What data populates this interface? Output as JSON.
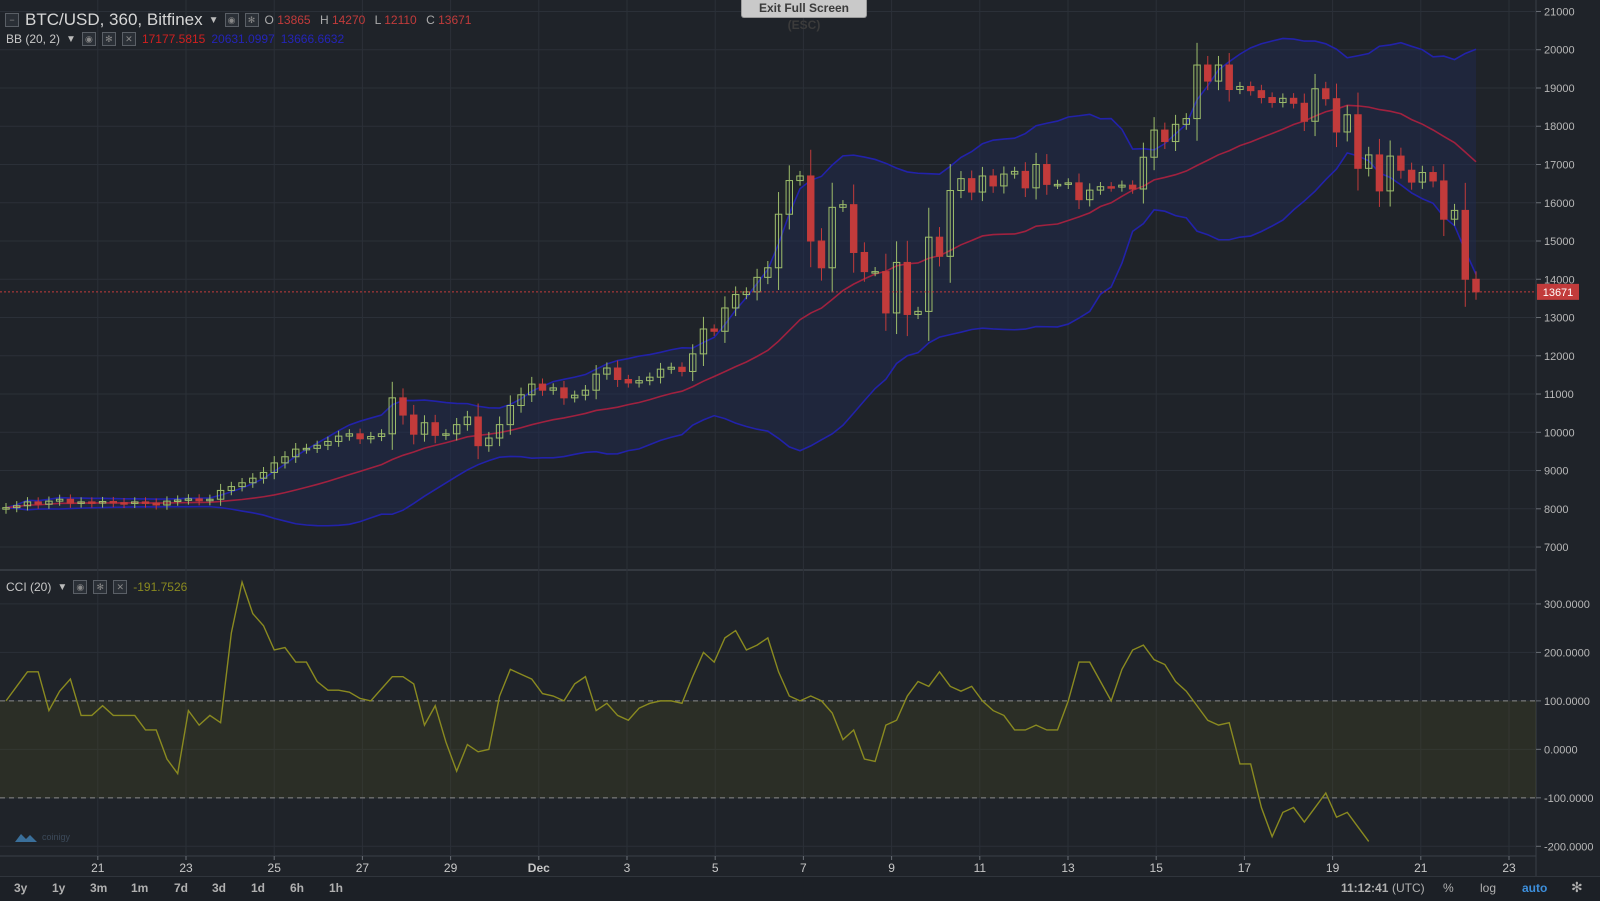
{
  "header": {
    "symbol": "BTC/USD, 360, Bitfinex",
    "ohlc": [
      {
        "label": "O",
        "value": "13865"
      },
      {
        "label": "H",
        "value": "14270"
      },
      {
        "label": "L",
        "value": "12110"
      },
      {
        "label": "C",
        "value": "13671"
      }
    ],
    "fullscreen_button": "Exit Full Screen (ESC)"
  },
  "bb_legend": {
    "name": "BB (20, 2)",
    "mid": "17177.5815",
    "upper": "20631.0997",
    "lower": "13666.6632"
  },
  "cci_legend": {
    "name": "CCI (20)",
    "value": "-191.7526"
  },
  "price_tag": "13671",
  "bottom": {
    "timeframes": [
      "3y",
      "1y",
      "3m",
      "1m",
      "7d",
      "3d",
      "1d",
      "6h",
      "1h"
    ],
    "time": "11:12:41",
    "tz": "(UTC)",
    "percent": "%",
    "log": "log",
    "auto": "auto"
  },
  "logo_text": "coinigy",
  "colors": {
    "up": "#9dbd6b",
    "down": "#c23b3b",
    "bb_band": "#2222aa",
    "bb_mid": "#a0213f",
    "cci": "#8a8a20",
    "background": "#1f2329"
  },
  "chart_data": [
    {
      "type": "candlestick",
      "title": "BTC/USD, 360, Bitfinex",
      "x_tick_labels": [
        "21",
        "23",
        "25",
        "27",
        "29",
        "Dec",
        "3",
        "5",
        "7",
        "9",
        "11",
        "13",
        "15",
        "17",
        "19",
        "21",
        "23"
      ],
      "y_ticks": [
        7000,
        8000,
        9000,
        10000,
        11000,
        12000,
        13000,
        14000,
        15000,
        16000,
        17000,
        18000,
        19000,
        20000,
        21000
      ],
      "ylim": [
        6400,
        21300
      ],
      "last_price": 13671,
      "series": [
        {
          "name": "BB (20, 2)",
          "close": [
            8030,
            8080,
            8180,
            8120,
            8200,
            8250,
            8150,
            8180,
            8150,
            8190,
            8160,
            8140,
            8180,
            8150,
            8100,
            8200,
            8230,
            8260,
            8210,
            8250,
            8480,
            8580,
            8680,
            8800,
            8950,
            9200,
            9360,
            9560,
            9580,
            9660,
            9760,
            9900,
            9960,
            9830,
            9890,
            9960,
            10900,
            10450,
            9950,
            10250,
            9920,
            9960,
            10200,
            10400,
            9650,
            9850,
            10200,
            10700,
            10980,
            11260,
            11100,
            11160,
            10900,
            10970,
            11100,
            11520,
            11680,
            11380,
            11290,
            11350,
            11440,
            11650,
            11700,
            11590,
            12050,
            12700,
            12640,
            13250,
            13600,
            13670,
            14050,
            14300,
            15700,
            16580,
            16700,
            15000,
            14300,
            15880,
            15950,
            14700,
            14200,
            14200,
            13120,
            14440,
            13080,
            13160,
            15100,
            14600,
            16320,
            16630,
            16280,
            16700,
            16440,
            16750,
            16820,
            16390,
            17000,
            16480,
            16480,
            16520,
            16080,
            16330,
            16420,
            16410,
            16460,
            16360,
            17190,
            17900,
            17600,
            18050,
            18200,
            19600,
            19180,
            19600,
            18960,
            19040,
            18930,
            18750,
            18620,
            18730,
            18600,
            18130,
            18980,
            18720,
            17850,
            18300,
            16900,
            17250,
            16310,
            17220,
            16850,
            16540,
            16790,
            16570,
            15570,
            15800,
            14000,
            13671
          ]
        },
        {
          "name": "CCI (20)",
          "values": [
            100,
            130,
            160,
            160,
            80,
            120,
            145,
            70,
            70,
            90,
            70,
            70,
            70,
            40,
            40,
            -20,
            -50,
            80,
            50,
            70,
            55,
            240,
            345,
            280,
            255,
            205,
            210,
            180,
            180,
            140,
            122,
            122,
            118,
            105,
            100,
            125,
            150,
            150,
            135,
            50,
            90,
            15,
            -45,
            10,
            -5,
            0,
            110,
            165,
            155,
            145,
            115,
            110,
            100,
            135,
            150,
            80,
            95,
            70,
            60,
            85,
            95,
            100,
            100,
            95,
            150,
            200,
            180,
            230,
            245,
            205,
            215,
            230,
            160,
            110,
            100,
            110,
            100,
            75,
            20,
            40,
            -20,
            -25,
            50,
            60,
            110,
            140,
            130,
            160,
            130,
            120,
            130,
            100,
            80,
            70,
            40,
            40,
            50,
            40,
            40,
            100,
            180,
            180,
            140,
            100,
            165,
            205,
            215,
            185,
            175,
            140,
            120,
            90,
            60,
            50,
            55,
            -30,
            -30,
            -120,
            -180,
            -130,
            -120,
            -150,
            -120,
            -90,
            -140,
            -130,
            -160,
            -190
          ]
        }
      ]
    }
  ]
}
